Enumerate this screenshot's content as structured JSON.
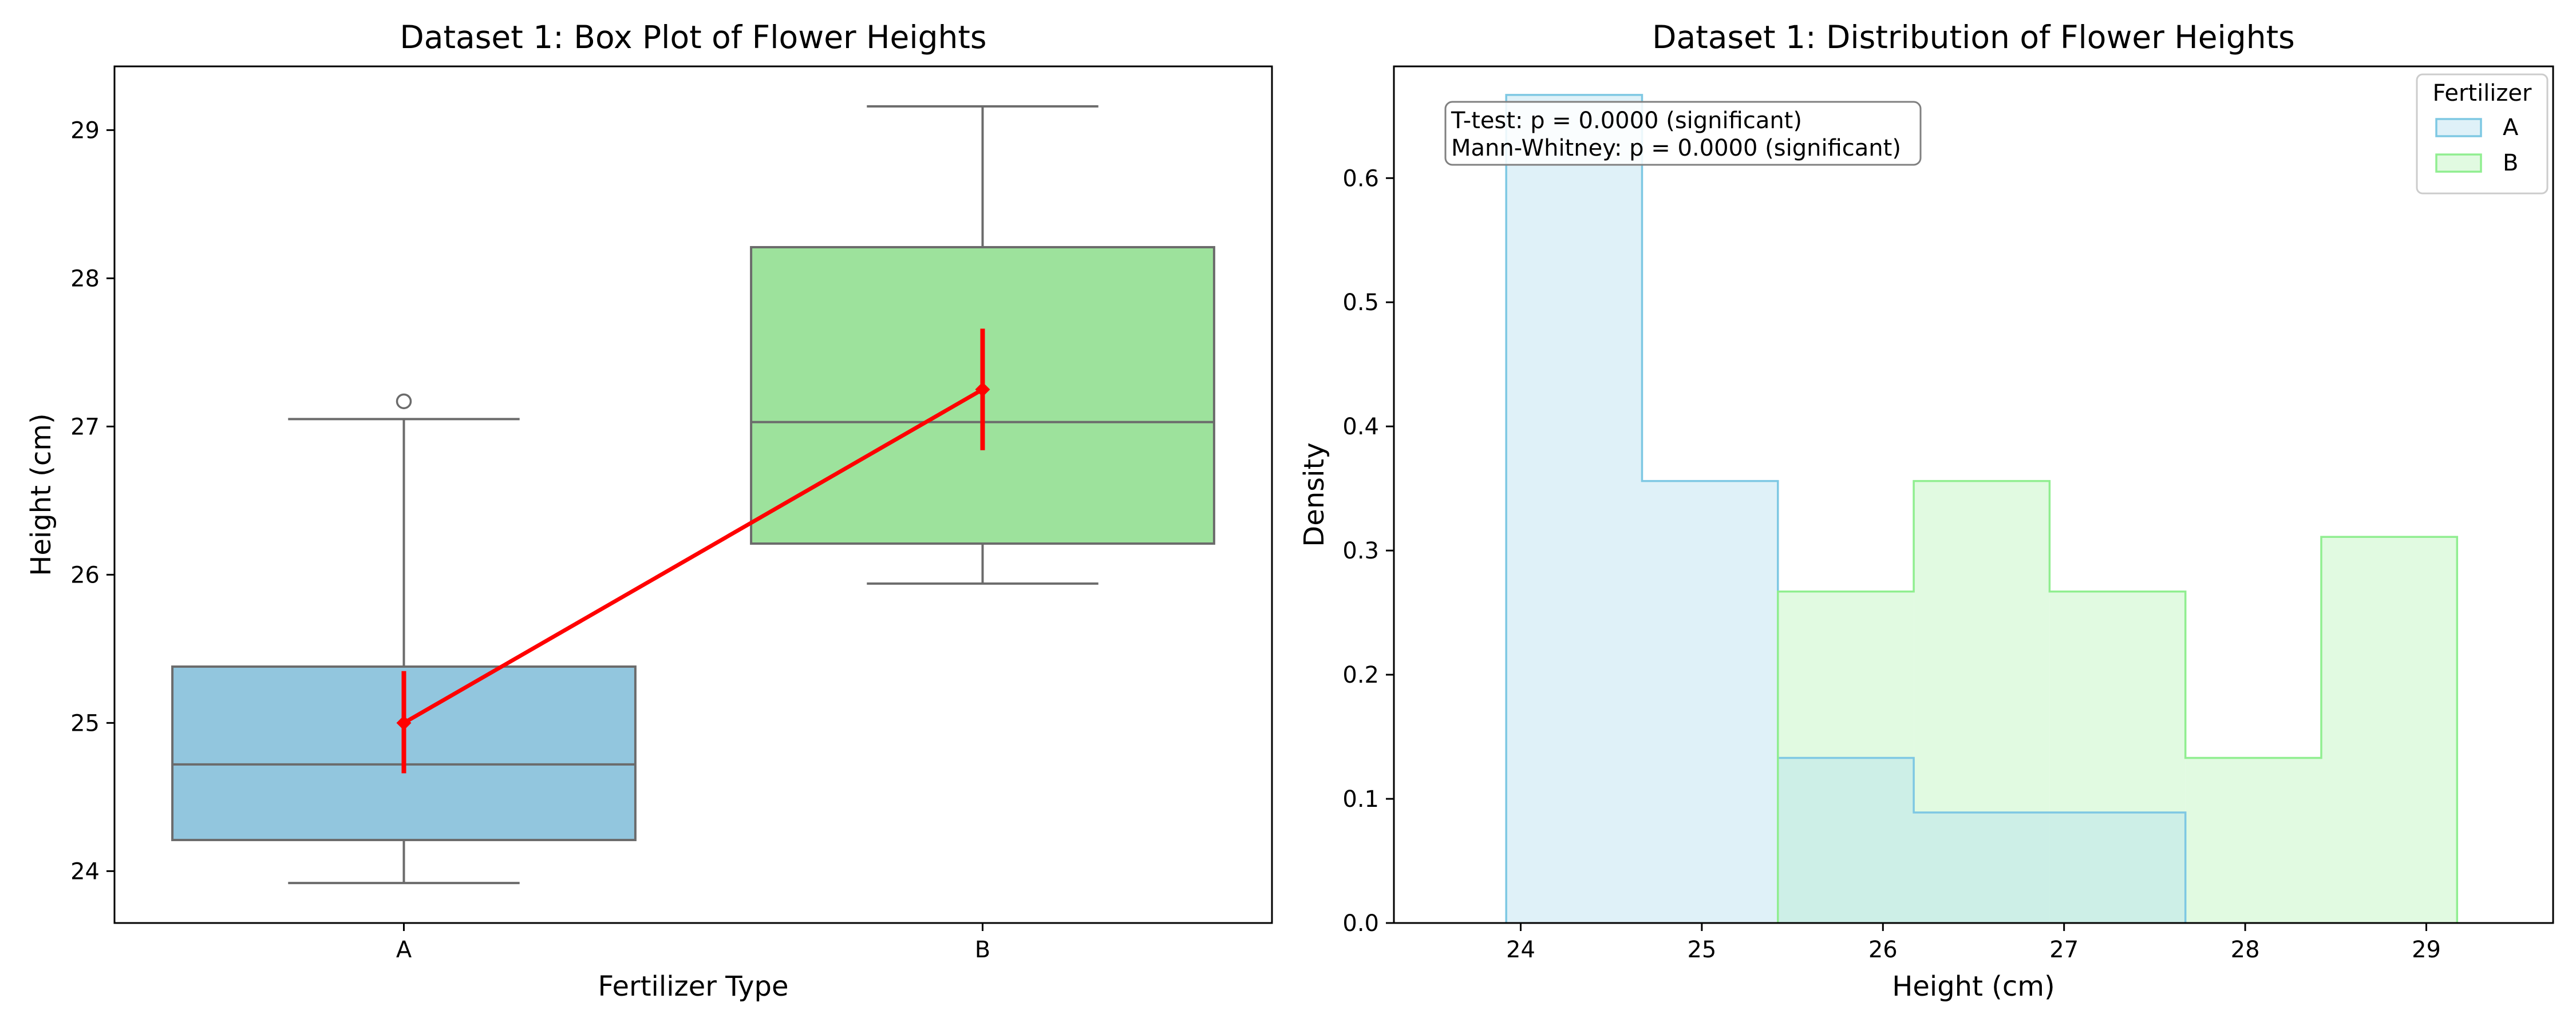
{
  "chart_data": [
    {
      "type": "box",
      "title": "Dataset 1: Box Plot of Flower Heights",
      "xlabel": "Fertilizer Type",
      "ylabel": "Height (cm)",
      "ylim": [
        23.65,
        29.43
      ],
      "yticks": [
        24,
        25,
        26,
        27,
        28,
        29
      ],
      "categories": [
        "A",
        "B"
      ],
      "boxes": [
        {
          "category": "A",
          "color": "#92c6de",
          "whisker_low": 23.92,
          "q1": 24.21,
          "median": 24.72,
          "q3": 25.38,
          "whisker_high": 27.05,
          "outliers": [
            27.17
          ]
        },
        {
          "category": "B",
          "color": "#9de29c",
          "whisker_low": 25.94,
          "q1": 26.21,
          "median": 27.03,
          "q3": 28.21,
          "whisker_high": 29.16,
          "outliers": []
        }
      ],
      "mean_line": {
        "color": "#ff0000",
        "points": [
          {
            "category": "A",
            "mean": 25.0,
            "ci_low": 24.66,
            "ci_high": 25.35
          },
          {
            "category": "B",
            "mean": 27.25,
            "ci_low": 26.84,
            "ci_high": 27.66
          }
        ]
      }
    },
    {
      "type": "histogram",
      "title": "Dataset 1: Distribution of Flower Heights",
      "xlabel": "Height (cm)",
      "ylabel": "Density",
      "xlim": [
        23.3,
        29.7
      ],
      "ylim": [
        0,
        0.69
      ],
      "xticks": [
        24,
        25,
        26,
        27,
        28,
        29
      ],
      "yticks": [
        0.0,
        0.1,
        0.2,
        0.3,
        0.4,
        0.5,
        0.6
      ],
      "bin_edges": [
        23.92,
        24.67,
        25.42,
        26.17,
        26.92,
        27.67,
        28.42,
        29.17
      ],
      "legend": {
        "title": "Fertilizer",
        "position": "top-right"
      },
      "series": [
        {
          "name": "A",
          "fill": "#dff1f8",
          "edge": "#7ec8e3",
          "density": [
            0.667,
            0.356,
            0.133,
            0.089,
            0.089,
            0.0,
            0.0
          ]
        },
        {
          "name": "B",
          "fill": "#e1fae1",
          "edge": "#90ee90",
          "density": [
            0.0,
            0.0,
            0.267,
            0.356,
            0.267,
            0.133,
            0.311
          ]
        }
      ],
      "overlap_fill": "#cdefe7",
      "annotation": [
        "T-test: p = 0.0000 (significant)",
        "Mann-Whitney: p = 0.0000 (significant)"
      ]
    }
  ]
}
